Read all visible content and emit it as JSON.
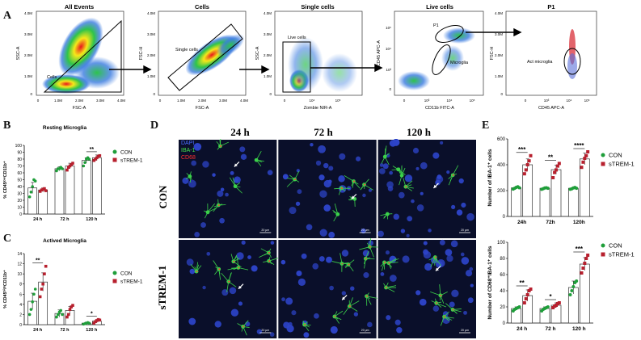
{
  "panels": {
    "A": "A",
    "B": "B",
    "C": "C",
    "D": "D",
    "E": "E"
  },
  "colors": {
    "con": "#1f9e3a",
    "strem": "#b7202e",
    "bar_edge": "#333333",
    "micro_bg": "#0a0f2a",
    "micro_green": "#3bd14a",
    "micro_blue": "#2d44c8"
  },
  "flow": [
    {
      "title": "All Events",
      "xlabel": "FSC-A",
      "ylabel": "SSC-A",
      "xticks": [
        "0",
        "1.0M",
        "2.0M",
        "3.0M",
        "4.0M"
      ],
      "yticks": [
        "0",
        "1.0M",
        "2.0M",
        "3.0M",
        "4.0M"
      ],
      "gate": "Cells"
    },
    {
      "title": "Cells",
      "xlabel": "FSC-A",
      "ylabel": "FSC-H",
      "xticks": [
        "0",
        "1.0M",
        "2.0M",
        "3.0M",
        "4.0M"
      ],
      "yticks": [
        "0",
        "1.0M",
        "2.0M",
        "3.0M",
        "4.0M"
      ],
      "gate": "Single cells"
    },
    {
      "title": "Single cells",
      "xlabel": "Zombie NIR-A",
      "ylabel": "SSC-A",
      "xticks": [
        "0",
        "10⁴",
        "10⁵"
      ],
      "yticks": [
        "0",
        "1.0M",
        "2.0M",
        "3.0M",
        "4.0M"
      ],
      "gate": "Live cells"
    },
    {
      "title": "Live cells",
      "xlabel": "CD11b FITC-A",
      "ylabel": "CD45 APC-A",
      "xticks": [
        "0",
        "10³",
        "10⁴",
        "10⁵"
      ],
      "yticks": [
        "0",
        "10³",
        "10⁴",
        "10⁵"
      ],
      "gate": "P1",
      "gate2": "Microglia"
    },
    {
      "title": "P1",
      "xlabel": "CD45 APC-A",
      "ylabel": "FSC-H",
      "xticks": [
        "0",
        "10³",
        "10⁴",
        "10⁵"
      ],
      "yticks": [
        "0",
        "1.0M",
        "2.0M",
        "3.0M",
        "4.0M"
      ],
      "gate": "Act microglia"
    }
  ],
  "legend": {
    "con": "CON",
    "strem": "sTREM-1"
  },
  "micro": {
    "cols": [
      "24 h",
      "72 h",
      "120 h"
    ],
    "rows": [
      "CON",
      "sTREM-1"
    ],
    "stain_labels": [
      "DAPI",
      "IBA-1",
      "CD68"
    ],
    "scalebar": "20 μm"
  },
  "chart_data": [
    {
      "type": "bar",
      "title": "Resting Microglia",
      "ylabel": "% CD45ˡᵒʷCD11b⁺",
      "categories": [
        "24 h",
        "72 h",
        "120 h"
      ],
      "ylim": [
        0,
        100
      ],
      "yticks": [
        0,
        10,
        20,
        30,
        40,
        50,
        60,
        70,
        80,
        90,
        100
      ],
      "series": [
        {
          "name": "CON",
          "values": [
            38,
            66,
            78
          ],
          "err": [
            8,
            3,
            4
          ]
        },
        {
          "name": "sTREM-1",
          "values": [
            35,
            70,
            82
          ],
          "err": [
            3,
            4,
            4
          ]
        }
      ],
      "points": [
        [
          [
            25,
            32,
            40,
            50,
            48
          ],
          [
            63,
            66,
            66,
            68,
            66
          ],
          [
            70,
            75,
            80,
            82,
            80
          ]
        ],
        [
          [
            33,
            35,
            36,
            37,
            34
          ],
          [
            64,
            68,
            70,
            72,
            74
          ],
          [
            78,
            80,
            82,
            84,
            85
          ]
        ]
      ],
      "annotations": [
        {
          "category": 2,
          "text": "**"
        }
      ]
    },
    {
      "type": "bar",
      "title": "Actived Microglia",
      "ylabel": "% CD45ʰⁱᵍʰCD11b⁺",
      "categories": [
        "24 h",
        "72 h",
        "120 h"
      ],
      "ylim": [
        0,
        14
      ],
      "yticks": [
        0,
        2,
        4,
        6,
        8,
        10,
        12,
        14
      ],
      "series": [
        {
          "name": "CON",
          "values": [
            4.6,
            2.2,
            0.3
          ],
          "err": [
            1.6,
            0.7,
            0.2
          ]
        },
        {
          "name": "sTREM-1",
          "values": [
            8.4,
            2.8,
            0.7
          ],
          "err": [
            1.8,
            0.8,
            0.3
          ]
        }
      ],
      "points": [
        [
          [
            2,
            3,
            4.5,
            6,
            7
          ],
          [
            1.5,
            2,
            2.5,
            2.8,
            2
          ],
          [
            0.1,
            0.2,
            0.3,
            0.4,
            0.3
          ]
        ],
        [
          [
            5.5,
            7,
            8,
            10,
            11.5
          ],
          [
            1.5,
            2,
            3,
            3.5,
            3.8
          ],
          [
            0.3,
            0.6,
            0.8,
            1,
            0.9
          ]
        ]
      ],
      "annotations": [
        {
          "category": 0,
          "text": "**"
        },
        {
          "category": 2,
          "text": "*"
        }
      ]
    },
    {
      "type": "bar",
      "ylabel": "Number of IBA-1⁺ cells",
      "categories": [
        "24h",
        "72h",
        "120h"
      ],
      "ylim": [
        0,
        600
      ],
      "yticks": [
        0,
        200,
        400,
        600
      ],
      "series": [
        {
          "name": "CON",
          "values": [
            222,
            218,
            218
          ],
          "err": [
            8,
            6,
            6
          ]
        },
        {
          "name": "sTREM-1",
          "values": [
            400,
            362,
            445
          ],
          "err": [
            45,
            35,
            45
          ]
        }
      ],
      "points": [
        [
          [
            212,
            218,
            225,
            230,
            222
          ],
          [
            210,
            215,
            220,
            222,
            218
          ],
          [
            210,
            214,
            220,
            224,
            218
          ]
        ],
        [
          [
            330,
            360,
            400,
            430,
            470
          ],
          [
            300,
            340,
            360,
            390,
            410
          ],
          [
            380,
            420,
            450,
            470,
            500
          ]
        ]
      ],
      "annotations": [
        {
          "category": 0,
          "text": "***"
        },
        {
          "category": 1,
          "text": "**"
        },
        {
          "category": 2,
          "text": "****"
        }
      ]
    },
    {
      "type": "bar",
      "ylabel": "Number of CD68⁺IBA-1⁺ cells",
      "categories": [
        "24 h",
        "72 h",
        "120 h"
      ],
      "ylim": [
        0,
        100
      ],
      "yticks": [
        0,
        20,
        40,
        60,
        80,
        100
      ],
      "series": [
        {
          "name": "CON",
          "values": [
            18,
            18,
            44
          ],
          "err": [
            2,
            2,
            8
          ]
        },
        {
          "name": "sTREM-1",
          "values": [
            34,
            22,
            73
          ],
          "err": [
            7,
            3,
            8
          ]
        }
      ],
      "points": [
        [
          [
            15,
            17,
            18,
            19,
            20
          ],
          [
            15,
            17,
            18,
            19,
            20
          ],
          [
            35,
            40,
            45,
            50,
            52
          ]
        ],
        [
          [
            25,
            30,
            35,
            40,
            42
          ],
          [
            19,
            21,
            22,
            24,
            25
          ],
          [
            62,
            68,
            74,
            80,
            84
          ]
        ]
      ],
      "annotations": [
        {
          "category": 0,
          "text": "**"
        },
        {
          "category": 1,
          "text": "*"
        },
        {
          "category": 2,
          "text": "***"
        }
      ]
    }
  ]
}
